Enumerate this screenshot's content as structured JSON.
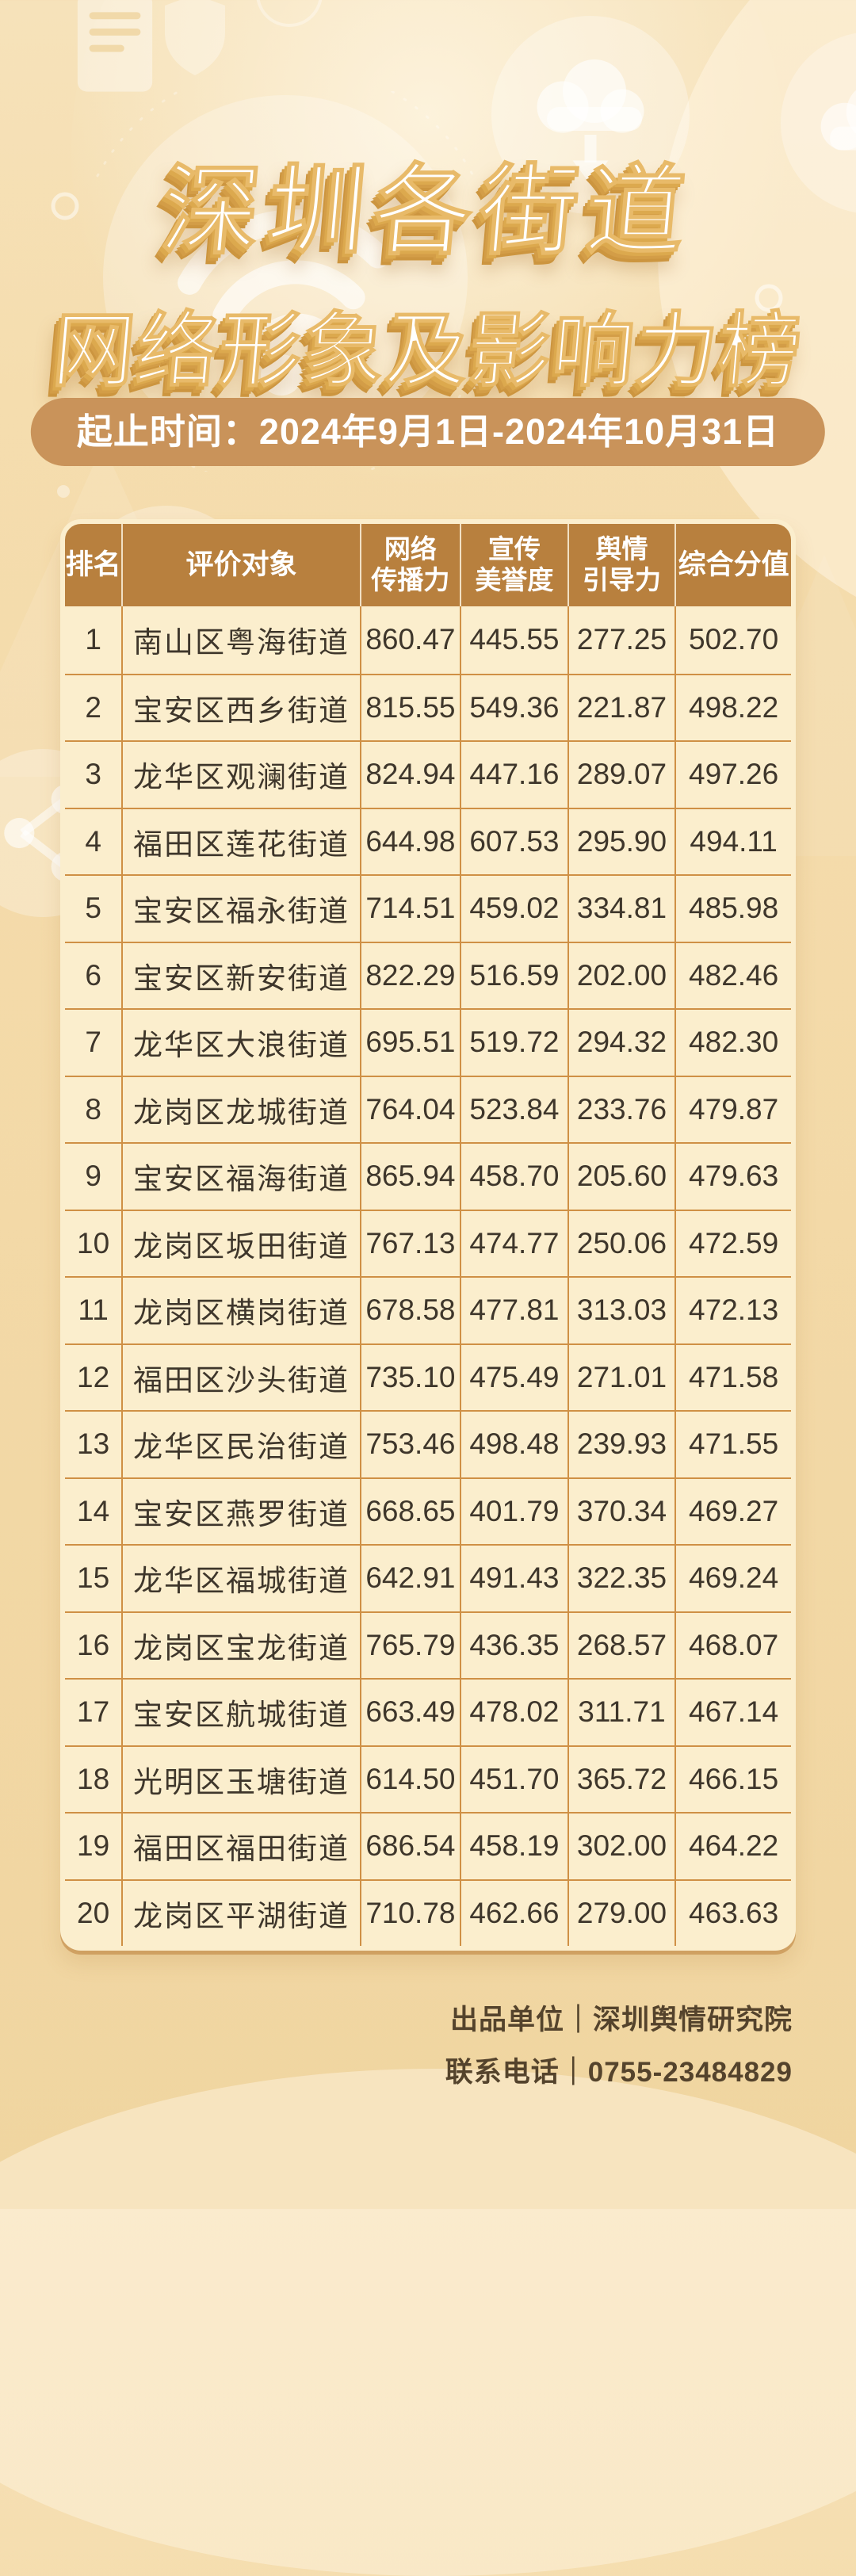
{
  "header": {
    "title_line1": "深圳各街道",
    "title_line2": "网络形象及影响力榜",
    "period": "起止时间：2024年9月1日-2024年10月31日"
  },
  "table": {
    "columns": [
      {
        "key": "rank",
        "label_lines": [
          "排名"
        ]
      },
      {
        "key": "target",
        "label_lines": [
          "评价对象"
        ]
      },
      {
        "key": "spread",
        "label_lines": [
          "网络",
          "传播力"
        ]
      },
      {
        "key": "reputation",
        "label_lines": [
          "宣传",
          "美誉度"
        ]
      },
      {
        "key": "guidance",
        "label_lines": [
          "舆情",
          "引导力"
        ]
      },
      {
        "key": "score",
        "label_lines": [
          "综合分值"
        ]
      }
    ]
  },
  "chart_data": {
    "type": "table",
    "title": "深圳各街道网络形象及影响力榜",
    "period": "起止时间：2024年9月1日-2024年10月31日",
    "columns": [
      "排名",
      "评价对象",
      "网络传播力",
      "宣传美誉度",
      "舆情引导力",
      "综合分值"
    ],
    "rows": [
      [
        "1",
        "南山区粤海街道",
        "860.47",
        "445.55",
        "277.25",
        "502.70"
      ],
      [
        "2",
        "宝安区西乡街道",
        "815.55",
        "549.36",
        "221.87",
        "498.22"
      ],
      [
        "3",
        "龙华区观澜街道",
        "824.94",
        "447.16",
        "289.07",
        "497.26"
      ],
      [
        "4",
        "福田区莲花街道",
        "644.98",
        "607.53",
        "295.90",
        "494.11"
      ],
      [
        "5",
        "宝安区福永街道",
        "714.51",
        "459.02",
        "334.81",
        "485.98"
      ],
      [
        "6",
        "宝安区新安街道",
        "822.29",
        "516.59",
        "202.00",
        "482.46"
      ],
      [
        "7",
        "龙华区大浪街道",
        "695.51",
        "519.72",
        "294.32",
        "482.30"
      ],
      [
        "8",
        "龙岗区龙城街道",
        "764.04",
        "523.84",
        "233.76",
        "479.87"
      ],
      [
        "9",
        "宝安区福海街道",
        "865.94",
        "458.70",
        "205.60",
        "479.63"
      ],
      [
        "10",
        "龙岗区坂田街道",
        "767.13",
        "474.77",
        "250.06",
        "472.59"
      ],
      [
        "11",
        "龙岗区横岗街道",
        "678.58",
        "477.81",
        "313.03",
        "472.13"
      ],
      [
        "12",
        "福田区沙头街道",
        "735.10",
        "475.49",
        "271.01",
        "471.58"
      ],
      [
        "13",
        "龙华区民治街道",
        "753.46",
        "498.48",
        "239.93",
        "471.55"
      ],
      [
        "14",
        "宝安区燕罗街道",
        "668.65",
        "401.79",
        "370.34",
        "469.27"
      ],
      [
        "15",
        "龙华区福城街道",
        "642.91",
        "491.43",
        "322.35",
        "469.24"
      ],
      [
        "16",
        "龙岗区宝龙街道",
        "765.79",
        "436.35",
        "268.57",
        "468.07"
      ],
      [
        "17",
        "宝安区航城街道",
        "663.49",
        "478.02",
        "311.71",
        "467.14"
      ],
      [
        "18",
        "光明区玉塘街道",
        "614.50",
        "451.70",
        "365.72",
        "466.15"
      ],
      [
        "19",
        "福田区福田街道",
        "686.54",
        "458.19",
        "302.00",
        "464.22"
      ],
      [
        "20",
        "龙岗区平湖街道",
        "710.78",
        "462.66",
        "279.00",
        "463.63"
      ]
    ]
  },
  "footer": {
    "publisher": "出品单位｜深圳舆情研究院",
    "phone": "联系电话｜0755-23484829"
  },
  "icons": [
    "wifi-icon",
    "cloud-download-icon",
    "cloud-icon",
    "server-download-icon",
    "share-icon",
    "clipboard-icon",
    "shield-icon"
  ],
  "colors": {
    "background_top": "#f6e2ba",
    "background_bottom": "#f0d5a0",
    "pill_background": "#c9935a",
    "table_header_background": "#b8803e",
    "cell_background": "#fbeecd",
    "grid_line": "#cf9045",
    "body_text": "#3e362b",
    "title_gold": "#d39d47",
    "footer_text": "#54432c"
  }
}
